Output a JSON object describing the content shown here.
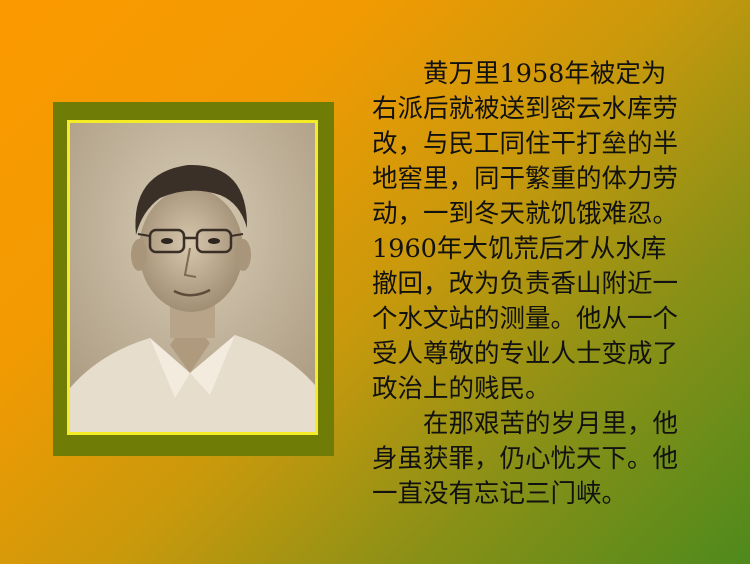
{
  "paragraphs": [
    {
      "lines": [
        "　　黄万里1958年被定为",
        "右派后就被送到密云水库劳",
        "改，与民工同住干打垒的半",
        "地窖里，同干繁重的体力劳",
        "动，一到冬天就饥饿难忍。",
        "1960年大饥荒后才从水库",
        "撤回，改为负责香山附近一",
        "个水文站的测量。他从一个",
        "受人尊敬的专业人士变成了",
        "政治上的贱民。"
      ]
    },
    {
      "lines": [
        "　　在那艰苦的岁月里，他",
        "身虽获罪，仍心忧天下。他",
        "一直没有忘记三门峡。"
      ]
    }
  ],
  "colors": {
    "background_top": "#fb9a00",
    "background_bottom": "#4e8a1c",
    "frame": "#6f7d06",
    "frame_border": "#f6ec26"
  }
}
